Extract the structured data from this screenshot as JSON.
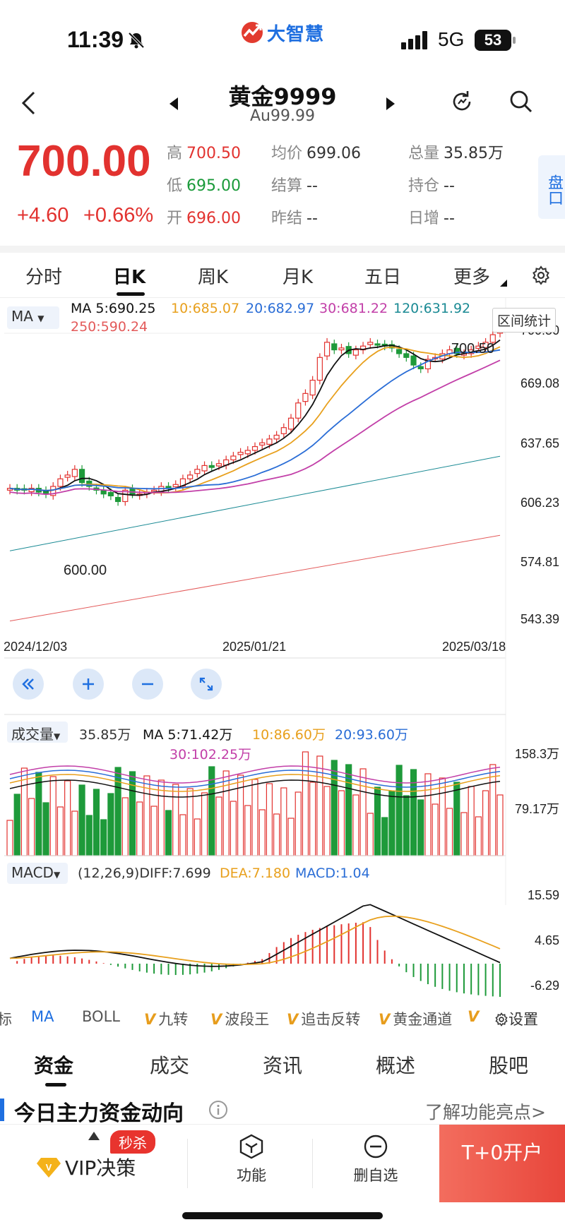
{
  "status": {
    "time": "11:39",
    "logo_text": "大智慧",
    "network": "5G",
    "battery": "53"
  },
  "nav": {
    "title": "黄金9999",
    "subtitle": "Au99.99"
  },
  "quote": {
    "price": "700.00",
    "change": "+4.60",
    "change_pct": "+0.66%",
    "high_label": "高",
    "high": "700.50",
    "low_label": "低",
    "low": "695.00",
    "open_label": "开",
    "open": "696.00",
    "avg_label": "均价",
    "avg": "699.06",
    "settle_label": "结算",
    "settle": "--",
    "prev_settle_label": "昨结",
    "prev_settle": "--",
    "vol_label": "总量",
    "vol": "35.85万",
    "oi_label": "持仓",
    "oi": "--",
    "daily_inc_label": "日增",
    "daily_inc": "--",
    "pankou": "盘口"
  },
  "period_tabs": [
    "分时",
    "日K",
    "周K",
    "月K",
    "五日",
    "更多"
  ],
  "chart": {
    "ma_select": "MA",
    "legend": {
      "ma5": "MA 5:690.25",
      "ma10": "10:685.07",
      "ma20": "20:682.97",
      "ma30": "30:681.22",
      "ma120": "120:631.92",
      "ma250": "250:590.24"
    },
    "range_button": "区间统计",
    "y_labels": [
      "700.50",
      "669.08",
      "637.65",
      "606.23",
      "574.81",
      "543.39"
    ],
    "x_labels": [
      "2024/12/03",
      "2025/01/21",
      "2025/03/18"
    ],
    "annot_high": "700.50",
    "annot_low": "600.00",
    "vol_select": "成交量",
    "vol_legend": {
      "vol": "35.85万",
      "ma5": "MA 5:71.42万",
      "ma10": "10:86.60万",
      "ma20": "20:93.60万",
      "ma30": "30:102.25万"
    },
    "vol_y": [
      "158.3万",
      "79.17万"
    ],
    "macd_select": "MACD",
    "macd_legend": {
      "params": "(12,26,9)DIFF:7.699",
      "dea": "DEA:7.180",
      "macd": "MACD:1.04"
    },
    "macd_y": [
      "15.59",
      "4.65",
      "-6.29"
    ],
    "colors": {
      "up": "#e2322f",
      "down": "#1e9a3a",
      "ma5": "#111111",
      "ma10": "#e8a01d",
      "ma20": "#2a6dd6",
      "ma30": "#c23fa8",
      "ma120": "#1a8a94",
      "ma250": "#e35a5a"
    }
  },
  "chart_data": {
    "type": "candlestick",
    "title": "黄金9999 日K",
    "x_start": "2024/12/03",
    "x_mid": "2025/01/21",
    "x_end": "2025/03/18",
    "ylim": [
      543.39,
      700.5
    ],
    "closes": [
      615,
      614,
      614,
      615,
      613,
      612,
      616,
      620,
      622,
      625,
      618,
      616,
      614,
      612,
      611,
      608,
      614,
      612,
      612,
      613,
      614,
      616,
      615,
      617,
      620,
      622,
      625,
      627,
      626,
      628,
      630,
      632,
      634,
      635,
      637,
      639,
      641,
      643,
      647,
      652,
      660,
      665,
      672,
      684,
      692,
      688,
      689,
      686,
      688,
      690,
      692,
      691,
      690,
      689,
      686,
      684,
      680,
      678,
      683,
      684,
      686,
      688,
      686,
      686,
      688,
      690,
      692,
      696,
      700
    ],
    "annotations": {
      "high": 700.5,
      "low": 600.0
    }
  },
  "indicators": [
    "标",
    "MA",
    "BOLL",
    "九转",
    "波段王",
    "追击反转",
    "黄金通道",
    "设置"
  ],
  "bottom_tabs": [
    "资金",
    "成交",
    "资讯",
    "概述",
    "股吧"
  ],
  "section": {
    "title": "今日主力资金动向",
    "learn": "了解功能亮点>"
  },
  "bottom_bar": {
    "vip": "VIP决策",
    "badge": "秒杀",
    "func": "功能",
    "del": "删自选",
    "open": "T+0开户"
  }
}
